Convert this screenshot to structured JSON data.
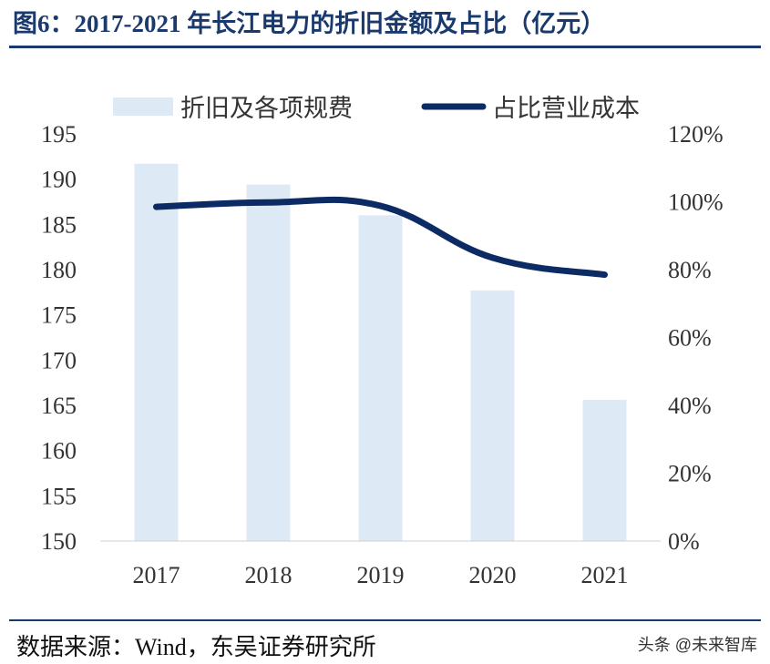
{
  "title": "图6：2017-2021 年长江电力的折旧金额及占比（亿元）",
  "source": "数据来源：Wind，东吴证券研究所",
  "watermark": "头条 @未来智库",
  "colors": {
    "bar": "#dde9f5",
    "line": "#0c2a63",
    "title": "#1a3a6e"
  },
  "chart_data": {
    "type": "bar+line",
    "categories": [
      "2017",
      "2018",
      "2019",
      "2020",
      "2021"
    ],
    "series": [
      {
        "name": "折旧及各项规费",
        "type": "bar",
        "axis": "left",
        "values": [
          191.7,
          189.4,
          186.0,
          177.7,
          165.6
        ]
      },
      {
        "name": "占比营业成本",
        "type": "line",
        "axis": "right",
        "values": [
          98.5,
          99.8,
          98.8,
          83.5,
          78.5
        ]
      }
    ],
    "left_axis": {
      "ylim": [
        150,
        195
      ],
      "ticks": [
        "150",
        "155",
        "160",
        "165",
        "170",
        "175",
        "180",
        "185",
        "190",
        "195"
      ]
    },
    "right_axis": {
      "ylim": [
        0,
        120
      ],
      "ticks": [
        "0%",
        "20%",
        "40%",
        "60%",
        "80%",
        "100%",
        "120%"
      ]
    },
    "legend": "top",
    "grid": false
  }
}
